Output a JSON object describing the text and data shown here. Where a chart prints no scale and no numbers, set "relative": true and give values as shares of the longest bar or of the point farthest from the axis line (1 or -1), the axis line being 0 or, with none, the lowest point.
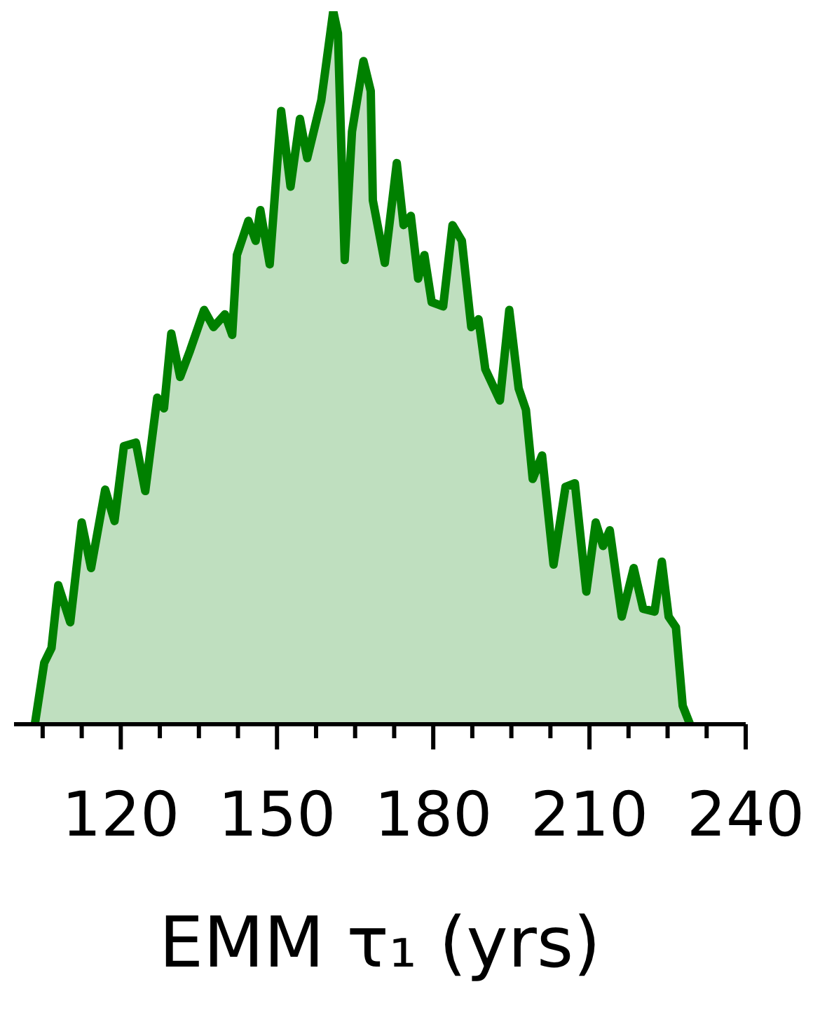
{
  "chart_data": {
    "type": "area",
    "xlabel": "EMM τ₁ (yrs)",
    "relative": true,
    "xlim": [
      99.5,
      240
    ],
    "xticks": [
      {
        "value": 105,
        "label": null
      },
      {
        "value": 112.5,
        "label": null
      },
      120,
      {
        "value": 127.5,
        "label": null
      },
      {
        "value": 135,
        "label": null
      },
      {
        "value": 142.5,
        "label": null
      },
      150,
      {
        "value": 157.5,
        "label": null
      },
      {
        "value": 165,
        "label": null
      },
      {
        "value": 172.5,
        "label": null
      },
      180,
      {
        "value": 187.5,
        "label": null
      },
      {
        "value": 195,
        "label": null
      },
      {
        "value": 202.5,
        "label": null
      },
      210,
      {
        "value": 217.5,
        "label": null
      },
      {
        "value": 225,
        "label": null
      },
      {
        "value": 232.5,
        "label": null
      },
      240
    ],
    "x": [
      103.5,
      105.3,
      106.7,
      108.0,
      110.3,
      112.5,
      114.3,
      117.0,
      118.8,
      120.6,
      122.9,
      124.7,
      127.0,
      128.3,
      129.7,
      131.4,
      133.3,
      136.0,
      137.8,
      140.0,
      141.4,
      142.3,
      144.5,
      145.9,
      146.8,
      148.6,
      150.8,
      152.6,
      154.4,
      155.8,
      158.5,
      160.8,
      161.7,
      163.0,
      164.4,
      166.6,
      168.0,
      168.4,
      170.7,
      173.0,
      174.3,
      175.7,
      177.1,
      178.3,
      179.7,
      181.9,
      183.7,
      185.5,
      187.3,
      188.7,
      190.0,
      192.8,
      194.6,
      196.4,
      197.8,
      199.1,
      200.9,
      203.1,
      205.4,
      207.2,
      209.4,
      211.2,
      212.6,
      213.9,
      216.2,
      218.5,
      220.3,
      222.5,
      223.9,
      225.2,
      226.6,
      227.9,
      229.3
    ],
    "series": [
      {
        "color": "#008000",
        "values": [
          0,
          0.086,
          0.107,
          0.195,
          0.143,
          0.283,
          0.219,
          0.329,
          0.285,
          0.39,
          0.395,
          0.327,
          0.458,
          0.443,
          0.548,
          0.487,
          0.524,
          0.581,
          0.557,
          0.575,
          0.546,
          0.658,
          0.706,
          0.678,
          0.721,
          0.645,
          0.86,
          0.754,
          0.849,
          0.794,
          0.875,
          1,
          0.969,
          0.651,
          0.831,
          0.93,
          0.888,
          0.735,
          0.647,
          0.787,
          0.7,
          0.713,
          0.625,
          0.658,
          0.592,
          0.586,
          0.7,
          0.678,
          0.557,
          0.568,
          0.498,
          0.454,
          0.581,
          0.471,
          0.441,
          0.344,
          0.377,
          0.224,
          0.333,
          0.338,
          0.186,
          0.283,
          0.25,
          0.272,
          0.151,
          0.219,
          0.162,
          0.158,
          0.228,
          0.151,
          0.136,
          0.026,
          0
        ]
      }
    ]
  }
}
